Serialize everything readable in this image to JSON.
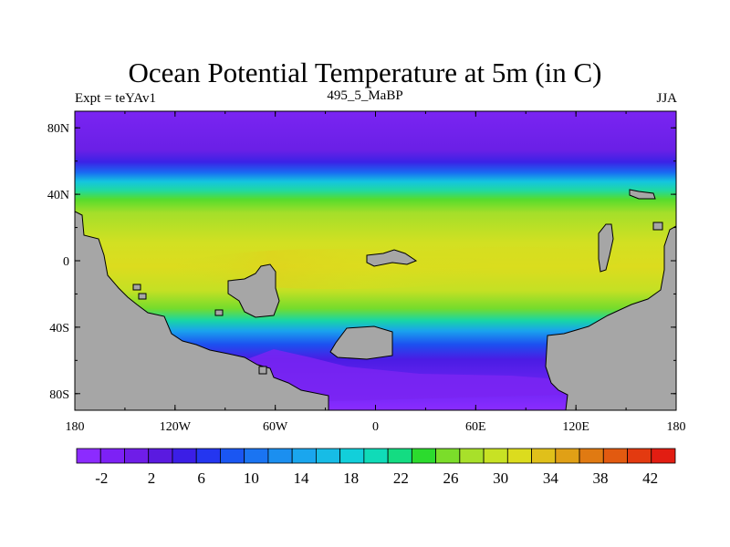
{
  "title": "Ocean Potential Temperature at 5m (in C)",
  "left_label": "Expt = teYAv1",
  "center_label": "495_5_MaBP",
  "right_label": "JJA",
  "chart_data": {
    "type": "heatmap",
    "variable": "Ocean Potential Temperature at 5m",
    "units": "C",
    "experiment": "teYAv1",
    "time": "495_5_MaBP",
    "season": "JJA",
    "lon_range": [
      -180,
      180
    ],
    "lat_range": [
      -90,
      90
    ],
    "x_ticks": [
      {
        "value": -180,
        "label": "180"
      },
      {
        "value": -120,
        "label": "120W"
      },
      {
        "value": -60,
        "label": "60W"
      },
      {
        "value": 0,
        "label": "0"
      },
      {
        "value": 60,
        "label": "60E"
      },
      {
        "value": 120,
        "label": "120E"
      },
      {
        "value": 180,
        "label": "180"
      }
    ],
    "y_ticks": [
      {
        "value": 80,
        "label": "80N"
      },
      {
        "value": 40,
        "label": "40N"
      },
      {
        "value": 0,
        "label": "0"
      },
      {
        "value": -40,
        "label": "40S"
      },
      {
        "value": -80,
        "label": "80S"
      }
    ],
    "colorbar": {
      "min": -4,
      "max": 44,
      "step": 2,
      "labels": [
        "-2",
        "2",
        "6",
        "10",
        "14",
        "18",
        "22",
        "26",
        "30",
        "34",
        "38",
        "42"
      ],
      "label_values": [
        -2,
        2,
        6,
        10,
        14,
        18,
        22,
        26,
        30,
        34,
        38,
        42
      ],
      "colors": [
        "#8c2bff",
        "#7d21f5",
        "#6f1de8",
        "#5a1ae0",
        "#3b1ee6",
        "#2436f0",
        "#1a56f2",
        "#1a74f2",
        "#1b8ff0",
        "#1aa6ee",
        "#17bce6",
        "#12cfda",
        "#10dbb8",
        "#14dc82",
        "#2cdb2e",
        "#7bdd2a",
        "#a8e02a",
        "#c8e224",
        "#dcdc1e",
        "#e0c01a",
        "#e0a016",
        "#e07a12",
        "#e25a10",
        "#e33a10",
        "#e21d12"
      ]
    },
    "zonal_mean_temperature": [
      {
        "lat": 85,
        "value": -3
      },
      {
        "lat": 60,
        "value": 2
      },
      {
        "lat": 50,
        "value": 10
      },
      {
        "lat": 40,
        "value": 20
      },
      {
        "lat": 30,
        "value": 27
      },
      {
        "lat": 15,
        "value": 30
      },
      {
        "lat": 0,
        "value": 32
      },
      {
        "lat": -15,
        "value": 31
      },
      {
        "lat": -25,
        "value": 28
      },
      {
        "lat": -35,
        "value": 20
      },
      {
        "lat": -45,
        "value": 10
      },
      {
        "lat": -55,
        "value": 4
      },
      {
        "lat": -70,
        "value": -2
      }
    ]
  }
}
